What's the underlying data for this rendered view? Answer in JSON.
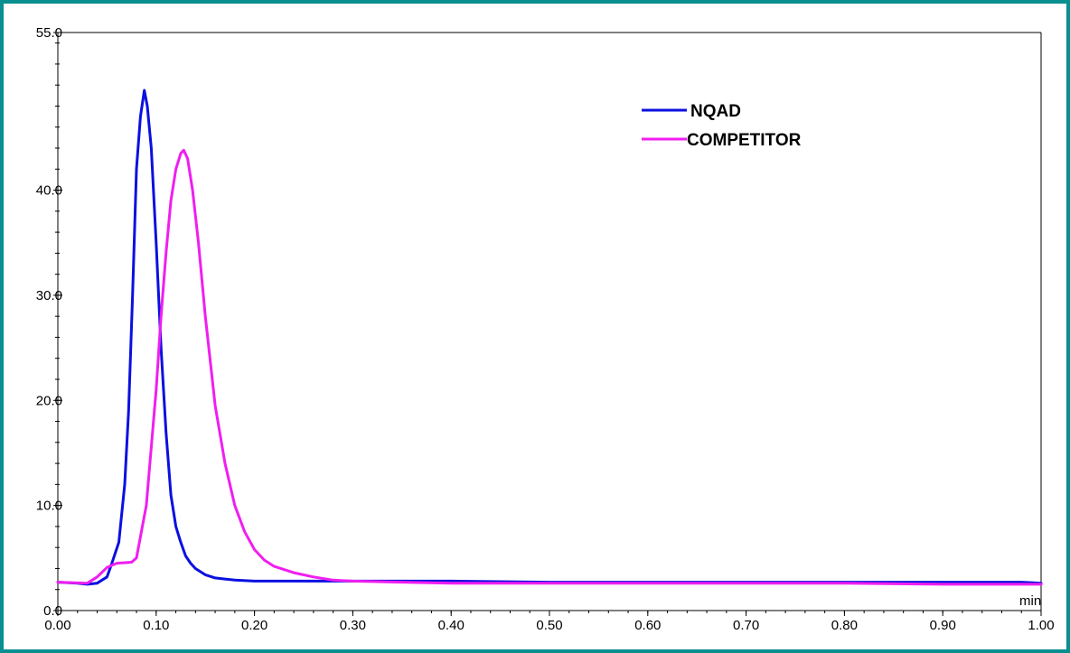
{
  "chart_data": {
    "type": "line",
    "title": "",
    "xlabel": "",
    "ylabel": "",
    "x_unit_label": "min",
    "xlim": [
      0.0,
      1.0
    ],
    "ylim": [
      0.0,
      55.0
    ],
    "grid": false,
    "legend_placement": "top-right",
    "x_ticks": [
      "0.00",
      "0.10",
      "0.20",
      "0.30",
      "0.40",
      "0.50",
      "0.60",
      "0.70",
      "0.80",
      "0.90",
      "1.00"
    ],
    "y_ticks": [
      "0.0",
      "10.0",
      "20.0",
      "30.0",
      "40.0",
      "55.0"
    ],
    "series": [
      {
        "name": "NQAD",
        "color": "#0a10e0",
        "x": [
          0.0,
          0.02,
          0.03,
          0.04,
          0.05,
          0.055,
          0.062,
          0.068,
          0.072,
          0.076,
          0.08,
          0.084,
          0.088,
          0.091,
          0.095,
          0.1,
          0.105,
          0.11,
          0.115,
          0.12,
          0.125,
          0.13,
          0.135,
          0.14,
          0.15,
          0.16,
          0.17,
          0.18,
          0.2,
          0.25,
          0.3,
          0.4,
          0.5,
          0.6,
          0.7,
          0.8,
          0.9,
          0.98,
          1.0
        ],
        "y": [
          2.7,
          2.6,
          2.5,
          2.6,
          3.2,
          4.5,
          6.5,
          12.0,
          19.0,
          30.0,
          42.0,
          47.0,
          49.5,
          48.0,
          44.0,
          35.0,
          25.0,
          17.0,
          11.0,
          8.0,
          6.5,
          5.2,
          4.5,
          4.0,
          3.4,
          3.1,
          3.0,
          2.9,
          2.8,
          2.8,
          2.8,
          2.8,
          2.7,
          2.7,
          2.7,
          2.7,
          2.7,
          2.7,
          2.6
        ]
      },
      {
        "name": "COMPETITOR",
        "color": "#f01ef0",
        "x": [
          0.0,
          0.03,
          0.04,
          0.05,
          0.06,
          0.075,
          0.08,
          0.09,
          0.1,
          0.105,
          0.11,
          0.115,
          0.12,
          0.125,
          0.128,
          0.132,
          0.137,
          0.143,
          0.15,
          0.16,
          0.17,
          0.18,
          0.19,
          0.2,
          0.21,
          0.22,
          0.24,
          0.26,
          0.28,
          0.3,
          0.35,
          0.4,
          0.45,
          0.5,
          0.6,
          0.7,
          0.8,
          0.9,
          1.0
        ],
        "y": [
          2.7,
          2.6,
          3.2,
          4.1,
          4.5,
          4.6,
          5.0,
          10.0,
          21.0,
          28.0,
          34.0,
          39.0,
          42.0,
          43.5,
          43.8,
          43.0,
          40.0,
          35.0,
          28.0,
          19.5,
          14.0,
          10.0,
          7.5,
          5.8,
          4.8,
          4.2,
          3.6,
          3.2,
          2.9,
          2.8,
          2.7,
          2.6,
          2.6,
          2.6,
          2.6,
          2.6,
          2.6,
          2.5,
          2.5
        ]
      }
    ]
  }
}
